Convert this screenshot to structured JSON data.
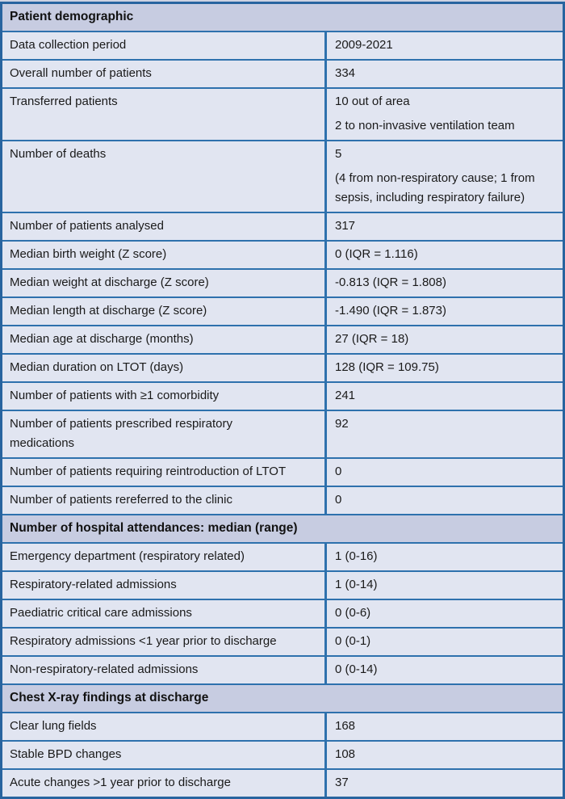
{
  "colors": {
    "border_blue": "#2e71ad",
    "outer_border_blue": "#28649f",
    "section_header_background": "#c7cce1",
    "row_background": "#e1e5f1",
    "text": "#1a1a1a"
  },
  "table": {
    "sections": [
      {
        "header": "Patient demographic",
        "rows": [
          {
            "label": "Data collection period",
            "value": "2009-2021"
          },
          {
            "label": "Overall number of patients",
            "value": "334"
          },
          {
            "label": "Transferred patients",
            "value_lines": [
              "10 out of area",
              "2 to non-invasive ventilation team"
            ]
          },
          {
            "label": "Number of deaths",
            "value_lines": [
              "5",
              "(4 from non-respiratory cause; 1 from sepsis, including respiratory failure)"
            ]
          },
          {
            "label": "Number of patients analysed",
            "value": "317"
          },
          {
            "label": "Median birth weight (Z score)",
            "value": "0 (IQR = 1.116)"
          },
          {
            "label": "Median weight at discharge (Z score)",
            "value": "-0.813 (IQR = 1.808)"
          },
          {
            "label": "Median length at discharge (Z score)",
            "value": "-1.490 (IQR = 1.873)"
          },
          {
            "label": "Median age at discharge (months)",
            "value": "27 (IQR = 18)"
          },
          {
            "label": "Median duration on LTOT (days)",
            "value": "128 (IQR = 109.75)"
          },
          {
            "label": "Number of patients with ≥1 comorbidity",
            "value": "241"
          },
          {
            "label_lines": [
              "Number of patients prescribed respiratory",
              "medications"
            ],
            "value": "92"
          },
          {
            "label": "Number of patients requiring reintroduction of LTOT",
            "value": "0"
          },
          {
            "label": "Number of patients rereferred to the clinic",
            "value": "0"
          }
        ]
      },
      {
        "header": "Number of hospital attendances: median (range)",
        "rows": [
          {
            "label": "Emergency department (respiratory related)",
            "value": "1 (0-16)"
          },
          {
            "label": "Respiratory-related admissions",
            "value": "1 (0-14)"
          },
          {
            "label": "Paediatric critical care admissions",
            "value": "0 (0-6)"
          },
          {
            "label": "Respiratory admissions <1 year prior to discharge",
            "value": "0 (0-1)"
          },
          {
            "label": "Non-respiratory-related admissions",
            "value": "0 (0-14)"
          }
        ]
      },
      {
        "header": "Chest X-ray findings at discharge",
        "rows": [
          {
            "label": "Clear lung fields",
            "value": "168"
          },
          {
            "label": "Stable BPD changes",
            "value": "108"
          },
          {
            "label": "Acute changes >1 year prior to discharge",
            "value": "37"
          }
        ]
      }
    ]
  }
}
